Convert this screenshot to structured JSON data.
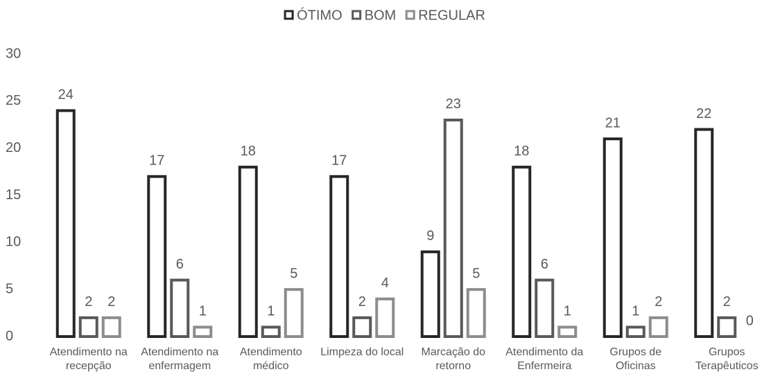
{
  "chart_data": {
    "type": "bar",
    "categories": [
      "Atendimento na recepção",
      "Atendimento na enfermagem",
      "Atendimento médico",
      "Limpeza do local",
      "Marcação do retorno",
      "Atendimento da Enfermeira",
      "Grupos de Oficinas",
      "Grupos Terapêuticos"
    ],
    "series": [
      {
        "name": "ÓTIMO",
        "color": "#262626",
        "values": [
          24,
          17,
          18,
          17,
          9,
          18,
          21,
          22
        ]
      },
      {
        "name": "BOM",
        "color": "#595959",
        "values": [
          2,
          6,
          1,
          2,
          23,
          6,
          1,
          2
        ]
      },
      {
        "name": "REGULAR",
        "color": "#8c8c8c",
        "values": [
          2,
          1,
          5,
          4,
          5,
          1,
          2,
          0
        ]
      }
    ],
    "ylim": [
      0,
      30
    ],
    "yticks": [
      0,
      5,
      10,
      15,
      20,
      25,
      30
    ],
    "grid": false,
    "legend": "top"
  }
}
